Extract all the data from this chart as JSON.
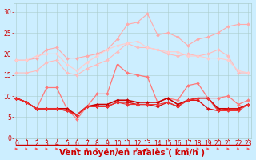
{
  "x": [
    0,
    1,
    2,
    3,
    4,
    5,
    6,
    7,
    8,
    9,
    10,
    11,
    12,
    13,
    14,
    15,
    16,
    17,
    18,
    19,
    20,
    21,
    22,
    23
  ],
  "series": [
    {
      "name": "line1_light",
      "color": "#ffaaaa",
      "linewidth": 0.8,
      "marker": "D",
      "markersize": 2.0,
      "y": [
        18.5,
        18.5,
        19.0,
        21.0,
        21.5,
        19.0,
        19.0,
        19.5,
        20.0,
        21.0,
        23.5,
        27.0,
        27.5,
        29.5,
        24.5,
        25.0,
        24.0,
        22.0,
        23.5,
        24.0,
        25.0,
        26.5,
        27.0,
        27.0
      ]
    },
    {
      "name": "line2_light",
      "color": "#ffbbbb",
      "linewidth": 0.8,
      "marker": "D",
      "markersize": 2.0,
      "y": [
        15.5,
        15.5,
        16.0,
        18.0,
        18.5,
        15.5,
        15.0,
        16.5,
        17.5,
        18.5,
        20.5,
        22.5,
        21.5,
        21.5,
        21.0,
        20.0,
        19.5,
        20.0,
        19.5,
        20.0,
        21.0,
        19.5,
        15.5,
        15.5
      ]
    },
    {
      "name": "line3_light",
      "color": "#ffcccc",
      "linewidth": 0.8,
      "marker": "D",
      "markersize": 2.0,
      "y": [
        18.5,
        18.5,
        19.5,
        20.0,
        20.0,
        17.5,
        16.0,
        18.0,
        19.5,
        21.0,
        22.0,
        22.5,
        23.0,
        21.5,
        21.0,
        20.5,
        20.5,
        19.5,
        19.5,
        19.0,
        19.0,
        18.5,
        16.0,
        15.5
      ]
    },
    {
      "name": "line4_med",
      "color": "#ff7777",
      "linewidth": 0.9,
      "marker": "D",
      "markersize": 2.0,
      "y": [
        9.5,
        8.5,
        7.0,
        12.0,
        12.0,
        7.0,
        4.5,
        7.5,
        10.5,
        10.5,
        17.5,
        15.5,
        15.0,
        14.5,
        8.5,
        9.5,
        9.0,
        12.5,
        13.0,
        9.5,
        9.5,
        10.0,
        8.0,
        9.0
      ]
    },
    {
      "name": "line5_dark",
      "color": "#cc0000",
      "linewidth": 1.2,
      "marker": "D",
      "markersize": 2.0,
      "y": [
        9.5,
        8.5,
        7.0,
        7.0,
        7.0,
        7.0,
        5.5,
        7.5,
        8.0,
        8.0,
        9.0,
        9.0,
        8.5,
        8.5,
        8.5,
        9.5,
        8.0,
        9.0,
        9.5,
        9.5,
        7.0,
        7.0,
        7.0,
        8.0
      ]
    },
    {
      "name": "line6_dark",
      "color": "#dd1111",
      "linewidth": 1.0,
      "marker": "D",
      "markersize": 2.0,
      "y": [
        9.5,
        8.5,
        7.0,
        7.0,
        7.0,
        6.5,
        5.5,
        7.5,
        7.5,
        7.5,
        8.5,
        8.5,
        8.0,
        8.0,
        7.5,
        8.5,
        7.5,
        9.0,
        9.0,
        7.0,
        6.5,
        7.0,
        7.0,
        8.0
      ]
    },
    {
      "name": "line7_dark",
      "color": "#ee3333",
      "linewidth": 0.8,
      "marker": "D",
      "markersize": 2.0,
      "y": [
        9.5,
        8.5,
        7.0,
        7.0,
        7.0,
        6.5,
        5.5,
        7.5,
        7.5,
        7.5,
        8.5,
        8.0,
        8.0,
        8.0,
        8.0,
        8.5,
        7.5,
        9.0,
        9.5,
        9.5,
        6.5,
        6.5,
        6.5,
        8.0
      ]
    }
  ],
  "arrow_color": "#ff4444",
  "xlabel": "Vent moyen/en rafales ( km/h )",
  "xlim": [
    0,
    23
  ],
  "ylim": [
    0,
    32
  ],
  "yticks": [
    0,
    5,
    10,
    15,
    20,
    25,
    30
  ],
  "xticks": [
    0,
    1,
    2,
    3,
    4,
    5,
    6,
    7,
    8,
    9,
    10,
    11,
    12,
    13,
    14,
    15,
    16,
    17,
    18,
    19,
    20,
    21,
    22,
    23
  ],
  "background_color": "#cceeff",
  "grid_color": "#aacccc",
  "tick_color": "#cc0000",
  "xlabel_color": "#cc0000",
  "tick_fontsize": 5.5,
  "xlabel_fontsize": 7.5
}
